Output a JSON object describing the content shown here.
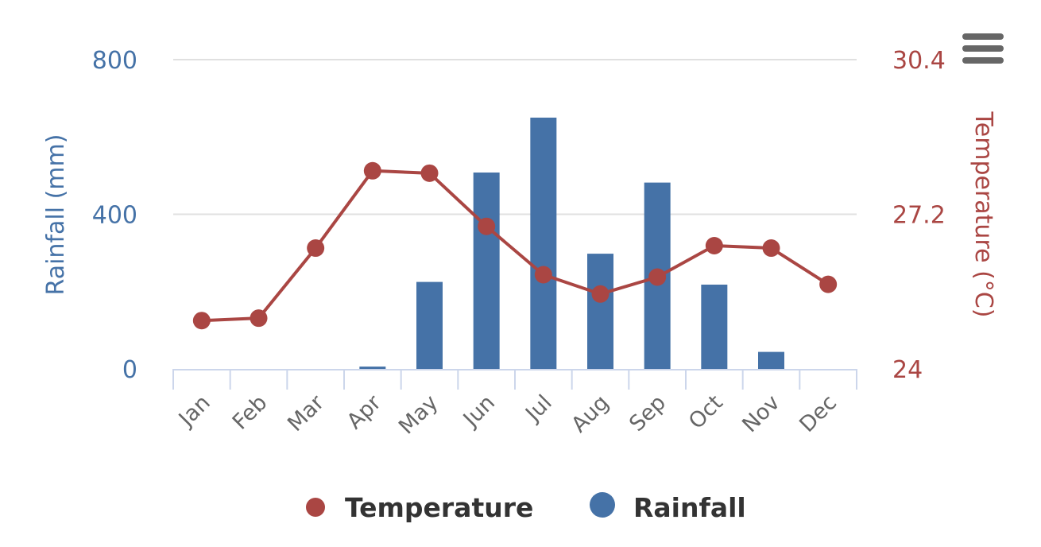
{
  "chart_data": {
    "type": "bar+line",
    "categories": [
      "Jan",
      "Feb",
      "Mar",
      "Apr",
      "May",
      "Jun",
      "Jul",
      "Aug",
      "Sep",
      "Oct",
      "Nov",
      "Dec"
    ],
    "series": [
      {
        "name": "Rainfall",
        "type": "bar",
        "axis": "left",
        "color": "#4572A7",
        "values": [
          0,
          0,
          0,
          6,
          225,
          508,
          650,
          298,
          482,
          218,
          44,
          0
        ]
      },
      {
        "name": "Temperature",
        "type": "line",
        "axis": "right",
        "color": "#AA4643",
        "values": [
          25.0,
          25.05,
          26.5,
          28.1,
          28.05,
          26.95,
          25.95,
          25.55,
          25.9,
          26.55,
          26.5,
          25.75
        ]
      }
    ],
    "y_left": {
      "label": "Rainfall (mm)",
      "range": [
        0,
        800
      ],
      "ticks": [
        "0",
        "400",
        "800"
      ],
      "color": "#4572A7"
    },
    "y_right": {
      "label": "Temperature (°C)",
      "range": [
        24,
        30.4
      ],
      "ticks": [
        "24",
        "27.2",
        "30.4"
      ],
      "color": "#AA4643"
    },
    "grid": true,
    "legend_position": "bottom-center",
    "legend": [
      "Temperature",
      "Rainfall"
    ]
  },
  "menu": {
    "icon": "hamburger-menu-icon"
  }
}
